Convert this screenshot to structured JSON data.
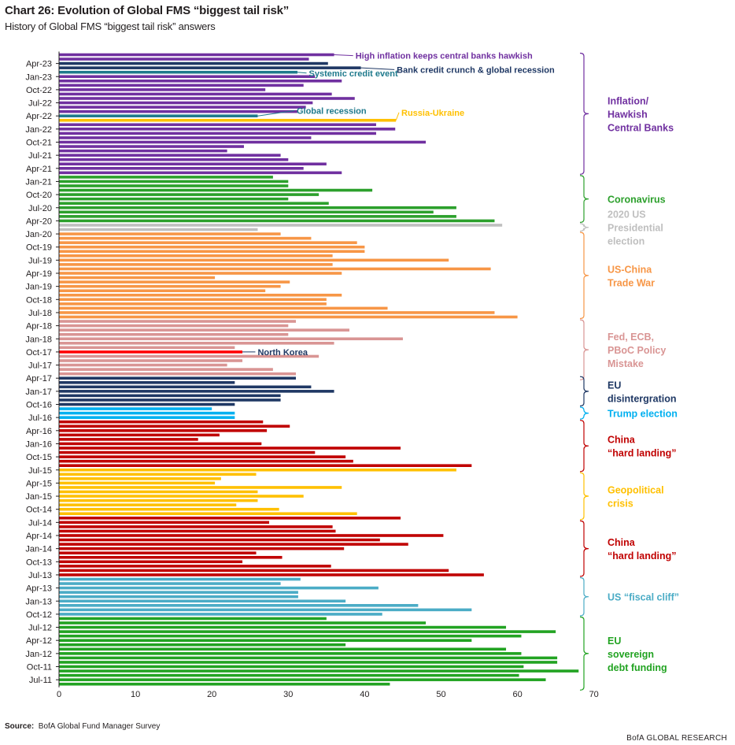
{
  "header": {
    "title": "Chart 26: Evolution of Global FMS “biggest tail risk”",
    "subtitle": "History of Global FMS “biggest tail risk” answers"
  },
  "footer": {
    "source_label": "Source:",
    "source_text": "BofA Global Fund Manager Survey",
    "brand": "BofA GLOBAL RESEARCH"
  },
  "colors": {
    "inflation": "#7030a0",
    "navy": "#1f3864",
    "teal": "#1f7a8c",
    "gold": "#ffc000",
    "green": "#2ca02c",
    "grey": "#bfbfbf",
    "orange": "#f79646",
    "pink": "#d99594",
    "red": "#ff0000",
    "cyan": "#00b0f0",
    "darkred": "#c00000",
    "ltblue": "#4bacc6",
    "brightgreen": "#22a322",
    "axis_text": "#231f20"
  },
  "chart_data": {
    "type": "bar",
    "orientation": "horizontal",
    "xlim": [
      0,
      70
    ],
    "x_ticks": [
      0,
      10,
      20,
      30,
      40,
      50,
      60,
      70
    ],
    "y_tick_labels": [
      "Apr-23",
      "Jan-23",
      "Oct-22",
      "Jul-22",
      "Apr-22",
      "Jan-22",
      "Oct-21",
      "Jul-21",
      "Apr-21",
      "Jan-21",
      "Oct-20",
      "Jul-20",
      "Apr-20",
      "Jan-20",
      "Oct-19",
      "Jul-19",
      "Apr-19",
      "Jan-19",
      "Oct-18",
      "Jul-18",
      "Apr-18",
      "Jan-18",
      "Oct-17",
      "Jul-17",
      "Apr-17",
      "Jan-17",
      "Oct-16",
      "Jul-16",
      "Apr-16",
      "Jan-16",
      "Oct-15",
      "Jul-15",
      "Apr-15",
      "Jan-15",
      "Oct-14",
      "Jul-14",
      "Apr-14",
      "Jan-14",
      "Oct-13",
      "Jul-13",
      "Apr-13",
      "Jan-13",
      "Oct-12",
      "Jul-12",
      "Apr-12",
      "Jan-12",
      "Oct-11",
      "Jul-11"
    ],
    "y_tick_positions": [
      2,
      5,
      8,
      11,
      14,
      17,
      20,
      23,
      26,
      29,
      32,
      35,
      38,
      41,
      44,
      47,
      50,
      53,
      56,
      59,
      62,
      65,
      68,
      71,
      74,
      77,
      80,
      83,
      86,
      89,
      92,
      95,
      98,
      101,
      104,
      107,
      110,
      113,
      116,
      119,
      122,
      125,
      128,
      131,
      134,
      137,
      140,
      143
    ],
    "bars": [
      {
        "v": 36,
        "c": "inflation"
      },
      {
        "v": 32.7,
        "c": "inflation"
      },
      {
        "v": 35.2,
        "c": "navy"
      },
      {
        "v": 39.5,
        "c": "navy"
      },
      {
        "v": 31.2,
        "c": "teal"
      },
      {
        "v": 33.5,
        "c": "inflation"
      },
      {
        "v": 37,
        "c": "inflation"
      },
      {
        "v": 32,
        "c": "inflation"
      },
      {
        "v": 27,
        "c": "inflation"
      },
      {
        "v": 35.7,
        "c": "inflation"
      },
      {
        "v": 38.7,
        "c": "inflation"
      },
      {
        "v": 33.2,
        "c": "inflation"
      },
      {
        "v": 32.3,
        "c": "inflation"
      },
      {
        "v": 31.2,
        "c": "inflation"
      },
      {
        "v": 26,
        "c": "teal"
      },
      {
        "v": 44.1,
        "c": "gold"
      },
      {
        "v": 41.5,
        "c": "inflation"
      },
      {
        "v": 44,
        "c": "inflation"
      },
      {
        "v": 41.5,
        "c": "inflation"
      },
      {
        "v": 33,
        "c": "inflation"
      },
      {
        "v": 48,
        "c": "inflation"
      },
      {
        "v": 24.2,
        "c": "inflation"
      },
      {
        "v": 22,
        "c": "inflation"
      },
      {
        "v": 29,
        "c": "inflation"
      },
      {
        "v": 30,
        "c": "inflation"
      },
      {
        "v": 35,
        "c": "inflation"
      },
      {
        "v": 32,
        "c": "inflation"
      },
      {
        "v": 37,
        "c": "inflation"
      },
      {
        "v": 28,
        "c": "green"
      },
      {
        "v": 30,
        "c": "green"
      },
      {
        "v": 30,
        "c": "green"
      },
      {
        "v": 41,
        "c": "green"
      },
      {
        "v": 34,
        "c": "green"
      },
      {
        "v": 30,
        "c": "green"
      },
      {
        "v": 35.3,
        "c": "green"
      },
      {
        "v": 52,
        "c": "green"
      },
      {
        "v": 49,
        "c": "green"
      },
      {
        "v": 52,
        "c": "green"
      },
      {
        "v": 57,
        "c": "green"
      },
      {
        "v": 58,
        "c": "grey"
      },
      {
        "v": 26,
        "c": "grey"
      },
      {
        "v": 29,
        "c": "orange"
      },
      {
        "v": 33,
        "c": "orange"
      },
      {
        "v": 39,
        "c": "orange"
      },
      {
        "v": 40,
        "c": "orange"
      },
      {
        "v": 40,
        "c": "orange"
      },
      {
        "v": 35.8,
        "c": "orange"
      },
      {
        "v": 51,
        "c": "orange"
      },
      {
        "v": 35.8,
        "c": "orange"
      },
      {
        "v": 56.5,
        "c": "orange"
      },
      {
        "v": 37,
        "c": "orange"
      },
      {
        "v": 20.4,
        "c": "orange"
      },
      {
        "v": 30.2,
        "c": "orange"
      },
      {
        "v": 29,
        "c": "orange"
      },
      {
        "v": 27,
        "c": "orange"
      },
      {
        "v": 37,
        "c": "orange"
      },
      {
        "v": 35,
        "c": "orange"
      },
      {
        "v": 35,
        "c": "orange"
      },
      {
        "v": 43,
        "c": "orange"
      },
      {
        "v": 57,
        "c": "orange"
      },
      {
        "v": 60,
        "c": "orange"
      },
      {
        "v": 31,
        "c": "pink"
      },
      {
        "v": 30,
        "c": "pink"
      },
      {
        "v": 38,
        "c": "pink"
      },
      {
        "v": 30,
        "c": "pink"
      },
      {
        "v": 45,
        "c": "pink"
      },
      {
        "v": 36,
        "c": "pink"
      },
      {
        "v": 23,
        "c": "pink"
      },
      {
        "v": 24,
        "c": "red"
      },
      {
        "v": 34,
        "c": "pink"
      },
      {
        "v": 24,
        "c": "pink"
      },
      {
        "v": 22,
        "c": "pink"
      },
      {
        "v": 28,
        "c": "pink"
      },
      {
        "v": 31,
        "c": "pink"
      },
      {
        "v": 31,
        "c": "navy"
      },
      {
        "v": 23,
        "c": "navy"
      },
      {
        "v": 33,
        "c": "navy"
      },
      {
        "v": 36,
        "c": "navy"
      },
      {
        "v": 29,
        "c": "navy"
      },
      {
        "v": 29,
        "c": "navy"
      },
      {
        "v": 23,
        "c": "navy"
      },
      {
        "v": 20,
        "c": "cyan"
      },
      {
        "v": 23,
        "c": "cyan"
      },
      {
        "v": 23,
        "c": "cyan"
      },
      {
        "v": 26.7,
        "c": "darkred"
      },
      {
        "v": 30.2,
        "c": "darkred"
      },
      {
        "v": 27.2,
        "c": "darkred"
      },
      {
        "v": 21,
        "c": "darkred"
      },
      {
        "v": 18.2,
        "c": "darkred"
      },
      {
        "v": 26.5,
        "c": "darkred"
      },
      {
        "v": 44.7,
        "c": "darkred"
      },
      {
        "v": 33.5,
        "c": "darkred"
      },
      {
        "v": 37.5,
        "c": "darkred"
      },
      {
        "v": 38.5,
        "c": "darkred"
      },
      {
        "v": 54,
        "c": "darkred"
      },
      {
        "v": 52,
        "c": "gold"
      },
      {
        "v": 25.8,
        "c": "gold"
      },
      {
        "v": 21.2,
        "c": "gold"
      },
      {
        "v": 20.4,
        "c": "gold"
      },
      {
        "v": 37,
        "c": "gold"
      },
      {
        "v": 26,
        "c": "gold"
      },
      {
        "v": 32,
        "c": "gold"
      },
      {
        "v": 26,
        "c": "gold"
      },
      {
        "v": 23.2,
        "c": "gold"
      },
      {
        "v": 28.8,
        "c": "gold"
      },
      {
        "v": 39,
        "c": "gold"
      },
      {
        "v": 44.7,
        "c": "darkred"
      },
      {
        "v": 27.5,
        "c": "darkred"
      },
      {
        "v": 35.8,
        "c": "darkred"
      },
      {
        "v": 36.2,
        "c": "darkred"
      },
      {
        "v": 50.3,
        "c": "darkred"
      },
      {
        "v": 42,
        "c": "darkred"
      },
      {
        "v": 45.7,
        "c": "darkred"
      },
      {
        "v": 37.3,
        "c": "darkred"
      },
      {
        "v": 25.8,
        "c": "darkred"
      },
      {
        "v": 29.2,
        "c": "darkred"
      },
      {
        "v": 24,
        "c": "darkred"
      },
      {
        "v": 35.6,
        "c": "darkred"
      },
      {
        "v": 51,
        "c": "darkred"
      },
      {
        "v": 55.6,
        "c": "darkred"
      },
      {
        "v": 31.6,
        "c": "ltblue"
      },
      {
        "v": 29,
        "c": "ltblue"
      },
      {
        "v": 41.8,
        "c": "ltblue"
      },
      {
        "v": 31.3,
        "c": "ltblue"
      },
      {
        "v": 31.3,
        "c": "ltblue"
      },
      {
        "v": 37.5,
        "c": "ltblue"
      },
      {
        "v": 47,
        "c": "ltblue"
      },
      {
        "v": 54,
        "c": "ltblue"
      },
      {
        "v": 42.3,
        "c": "ltblue"
      },
      {
        "v": 35,
        "c": "brightgreen"
      },
      {
        "v": 48,
        "c": "brightgreen"
      },
      {
        "v": 58.5,
        "c": "brightgreen"
      },
      {
        "v": 65,
        "c": "brightgreen"
      },
      {
        "v": 60.5,
        "c": "brightgreen"
      },
      {
        "v": 54,
        "c": "brightgreen"
      },
      {
        "v": 37.5,
        "c": "brightgreen"
      },
      {
        "v": 58.5,
        "c": "brightgreen"
      },
      {
        "v": 60.5,
        "c": "brightgreen"
      },
      {
        "v": 65.2,
        "c": "brightgreen"
      },
      {
        "v": 65.2,
        "c": "brightgreen"
      },
      {
        "v": 60.8,
        "c": "brightgreen"
      },
      {
        "v": 68,
        "c": "brightgreen"
      },
      {
        "v": 60.2,
        "c": "brightgreen"
      },
      {
        "v": 63.7,
        "c": "brightgreen"
      },
      {
        "v": 43.3,
        "c": "brightgreen"
      }
    ],
    "annotations": [
      {
        "text": "High inflation keeps central banks hawkish",
        "c": "inflation",
        "bar": 0,
        "lx": 38.8,
        "lrow": 0.2
      },
      {
        "text": "Systemic credit event",
        "c": "teal",
        "bar": 4,
        "lx": 32.7,
        "lrow": 4.2
      },
      {
        "text": "Bank credit crunch & global recession",
        "c": "navy",
        "bar": 3,
        "lx": 44.2,
        "lrow": 3.4
      },
      {
        "text": "Global recession",
        "c": "teal",
        "bar": 14,
        "lx": 31.1,
        "lrow": 12.8
      },
      {
        "text": "Russia-Ukraine",
        "c": "gold",
        "bar": 15,
        "lx": 44.8,
        "lrow": 13.2
      },
      {
        "text": "North Korea",
        "c": "navy",
        "bar": 68,
        "lx": 26,
        "lrow": 68
      }
    ],
    "groups": [
      {
        "lines": [
          "Inflation/",
          "Hawkish",
          "Central Banks"
        ],
        "c": "inflation",
        "from": 0,
        "to": 27
      },
      {
        "lines": [
          "Coronavirus"
        ],
        "c": "green",
        "from": 28,
        "to": 38
      },
      {
        "lines": [
          "2020 US",
          "Presidential",
          "election"
        ],
        "c": "grey",
        "from": 39,
        "to": 40
      },
      {
        "lines": [
          "US-China",
          "Trade War"
        ],
        "c": "orange",
        "from": 41,
        "to": 60
      },
      {
        "lines": [
          "Fed, ECB,",
          "PBoC Policy",
          "Mistake"
        ],
        "c": "pink",
        "from": 61,
        "to": 74
      },
      {
        "lines": [
          "EU",
          "disintergration"
        ],
        "c": "navy",
        "from": 74,
        "to": 80
      },
      {
        "lines": [
          "Trump election"
        ],
        "c": "cyan",
        "from": 81,
        "to": 83
      },
      {
        "lines": [
          "China",
          "“hard landing”"
        ],
        "c": "darkred",
        "from": 84,
        "to": 95
      },
      {
        "lines": [
          "Geopolitical",
          "crisis"
        ],
        "c": "gold",
        "from": 96,
        "to": 106
      },
      {
        "lines": [
          "China",
          "“hard landing”"
        ],
        "c": "darkred",
        "from": 107,
        "to": 119
      },
      {
        "lines": [
          "US “fiscal cliff”"
        ],
        "c": "ltblue",
        "from": 120,
        "to": 128
      },
      {
        "lines": [
          "EU",
          "sovereign",
          "debt funding"
        ],
        "c": "brightgreen",
        "from": 129,
        "to": 145
      }
    ]
  }
}
